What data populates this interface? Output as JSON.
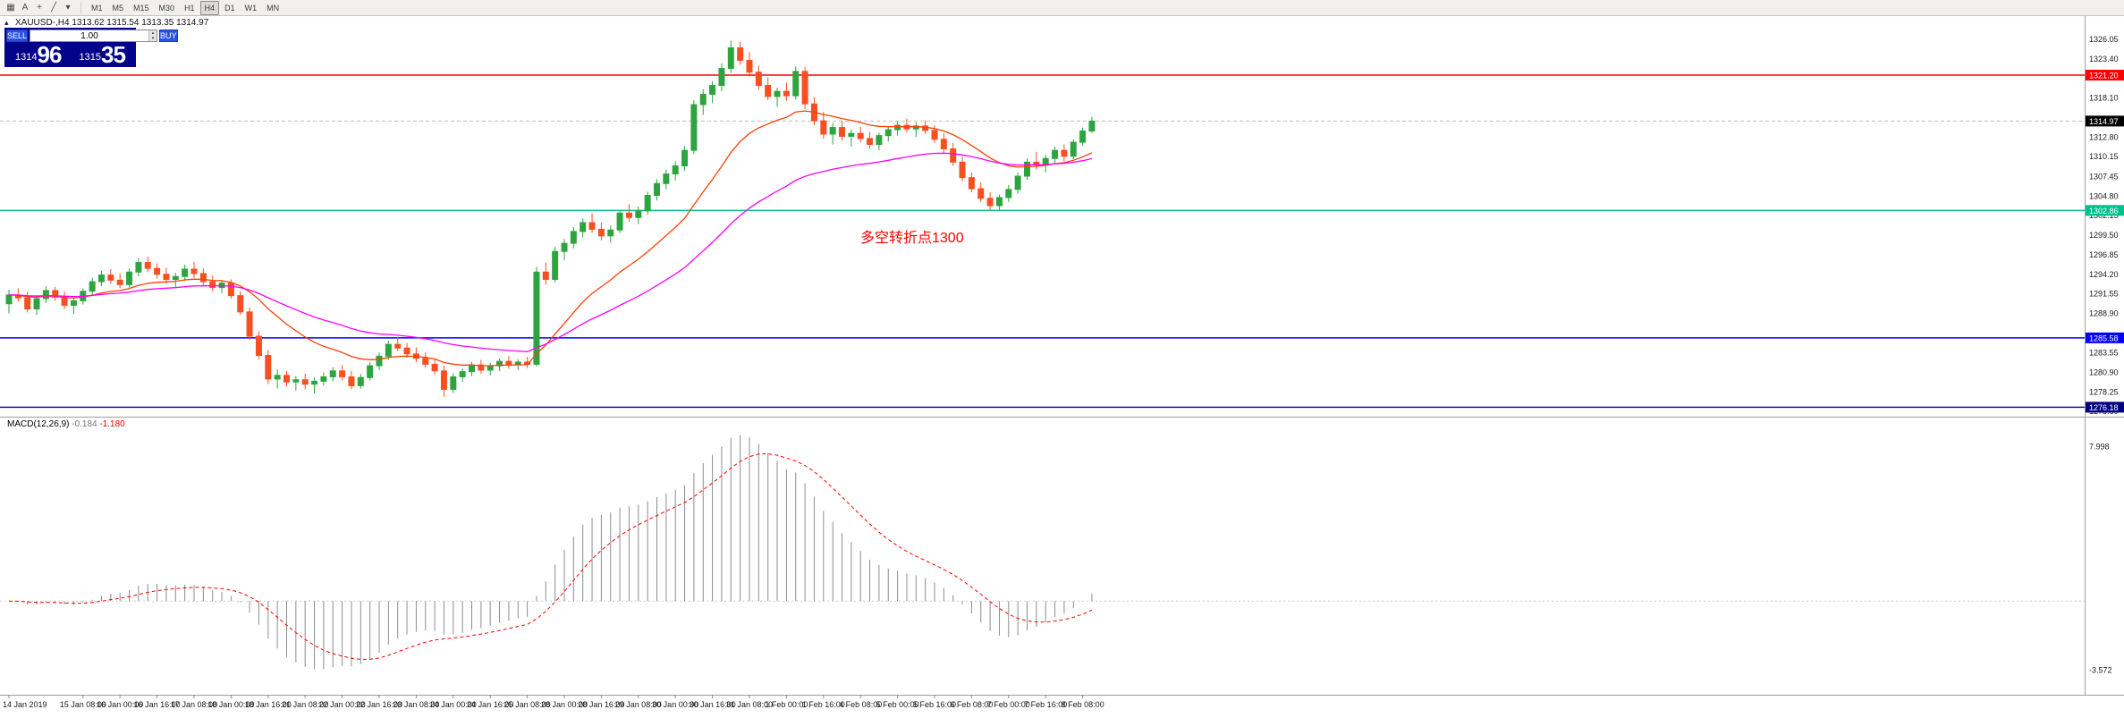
{
  "toolbar": {
    "icons": [
      {
        "name": "chart-window-icon",
        "glyph": "▦"
      },
      {
        "name": "cursor-tool-icon",
        "glyph": "A"
      },
      {
        "name": "crosshair-tool-icon",
        "glyph": "+"
      },
      {
        "name": "draw-tools-icon",
        "glyph": "╱"
      },
      {
        "name": "draw-tools-caret-icon",
        "glyph": "▾"
      }
    ],
    "timeframes": [
      {
        "label": "M1",
        "active": false
      },
      {
        "label": "M5",
        "active": false
      },
      {
        "label": "M15",
        "active": false
      },
      {
        "label": "M30",
        "active": false
      },
      {
        "label": "H1",
        "active": false
      },
      {
        "label": "H4",
        "active": true
      },
      {
        "label": "D1",
        "active": false
      },
      {
        "label": "W1",
        "active": false
      },
      {
        "label": "MN",
        "active": false
      }
    ]
  },
  "chart": {
    "title": "XAUUSD-,H4 1313.62 1315.54 1313.35 1314.97",
    "symbol": "XAUUSD-",
    "period": "H4",
    "collapse_glyph": "▴",
    "ohlc": {
      "open": "1313.62",
      "high": "1315.54",
      "low": "1313.35",
      "close": "1314.97"
    }
  },
  "trade_panel": {
    "sell_label": "SELL",
    "buy_label": "BUY",
    "volume": "1.00",
    "spin_up": "▴",
    "spin_down": "▾",
    "sell_price_main": "1314",
    "sell_price_big": "96",
    "buy_price_main": "1315",
    "buy_price_big": "35"
  },
  "annotation": {
    "text": "多空转折点1300",
    "color": "#ff0000"
  },
  "chart_data": {
    "type": "candlestick",
    "symbol": "XAUUSD-",
    "timeframe": "H4",
    "colors": {
      "bull": "#2EA440",
      "bear": "#F84F21",
      "background": "#ffffff",
      "axis_text": "#1a1a1a"
    },
    "y_axis": {
      "visible_range": [
        1275.3,
        1329.2
      ],
      "ticks": [
        1326.05,
        1323.4,
        1318.1,
        1312.8,
        1310.15,
        1307.45,
        1304.8,
        1302.15,
        1299.5,
        1296.85,
        1294.2,
        1291.55,
        1288.9,
        1283.55,
        1280.9,
        1278.25,
        1275.6
      ]
    },
    "x_axis": {
      "labels": [
        {
          "text": "14 Jan 2019",
          "bar": 0
        },
        {
          "text": "15 Jan 08:00",
          "bar": 8
        },
        {
          "text": "16 Jan 00:00",
          "bar": 12
        },
        {
          "text": "16 Jan 16:00",
          "bar": 16
        },
        {
          "text": "17 Jan 08:00",
          "bar": 20
        },
        {
          "text": "18 Jan 00:00",
          "bar": 24
        },
        {
          "text": "18 Jan 16:00",
          "bar": 28
        },
        {
          "text": "21 Jan 08:00",
          "bar": 32
        },
        {
          "text": "22 Jan 00:00",
          "bar": 36
        },
        {
          "text": "22 Jan 16:00",
          "bar": 40
        },
        {
          "text": "23 Jan 08:00",
          "bar": 44
        },
        {
          "text": "24 Jan 00:00",
          "bar": 48
        },
        {
          "text": "24 Jan 16:00",
          "bar": 52
        },
        {
          "text": "25 Jan 08:00",
          "bar": 56
        },
        {
          "text": "28 Jan 00:00",
          "bar": 60
        },
        {
          "text": "28 Jan 16:00",
          "bar": 64
        },
        {
          "text": "29 Jan 08:00",
          "bar": 68
        },
        {
          "text": "30 Jan 00:00",
          "bar": 72
        },
        {
          "text": "30 Jan 16:00",
          "bar": 76
        },
        {
          "text": "31 Jan 08:00",
          "bar": 80
        },
        {
          "text": "1 Feb 00:00",
          "bar": 84
        },
        {
          "text": "1 Feb 16:00",
          "bar": 88
        },
        {
          "text": "4 Feb 08:00",
          "bar": 92
        },
        {
          "text": "5 Feb 00:00",
          "bar": 96
        },
        {
          "text": "5 Feb 16:00",
          "bar": 100
        },
        {
          "text": "6 Feb 08:00",
          "bar": 104
        },
        {
          "text": "7 Feb 00:00",
          "bar": 108
        },
        {
          "text": "7 Feb 16:00",
          "bar": 112
        },
        {
          "text": "8 Feb 08:00",
          "bar": 116
        }
      ]
    },
    "horizontal_lines": [
      {
        "price": 1321.2,
        "label": "1321.20",
        "color": "#ff0000"
      },
      {
        "price": 1302.86,
        "label": "1302.86",
        "color": "#00bf8c"
      },
      {
        "price": 1285.58,
        "label": "1285.58",
        "color": "#0000ff"
      },
      {
        "price": 1276.18,
        "label": "1276.18",
        "color": "#000080"
      }
    ],
    "current_price": {
      "value": 1314.97,
      "label": "1314.97",
      "badge_color": "#000000"
    },
    "moving_averages": [
      {
        "name": "fast-ma",
        "period": 16,
        "method": "ema",
        "color": "#ff4000"
      },
      {
        "name": "slow-ma",
        "period": 38,
        "method": "ema",
        "color": "#ff00ff"
      }
    ],
    "macd": {
      "label": "MACD(12,26,9)",
      "main_value": "-0.184",
      "signal_value": "-1.180",
      "fast": 12,
      "slow": 26,
      "signal_period": 9,
      "scale_labels": [
        "7.998",
        "-3.572"
      ],
      "scale_values": [
        7.998,
        -3.572
      ],
      "histogram_color": "#8c8c8c",
      "signal_color": "#ff0000"
    },
    "candles": [
      [
        1290.2,
        1292.1,
        1288.9,
        1291.4
      ],
      [
        1291.4,
        1292.3,
        1290.5,
        1291.0
      ],
      [
        1291.0,
        1291.8,
        1289.0,
        1289.5
      ],
      [
        1289.5,
        1291.3,
        1288.7,
        1290.9
      ],
      [
        1290.9,
        1292.6,
        1290.3,
        1292.0
      ],
      [
        1292.0,
        1292.5,
        1290.6,
        1291.1
      ],
      [
        1291.1,
        1291.9,
        1289.5,
        1290.0
      ],
      [
        1290.0,
        1291.0,
        1288.8,
        1290.6
      ],
      [
        1290.6,
        1292.3,
        1290.1,
        1291.9
      ],
      [
        1291.9,
        1293.7,
        1291.4,
        1293.2
      ],
      [
        1293.2,
        1294.7,
        1292.6,
        1294.1
      ],
      [
        1294.1,
        1294.9,
        1292.9,
        1293.4
      ],
      [
        1293.4,
        1294.3,
        1292.3,
        1292.8
      ],
      [
        1292.8,
        1295.0,
        1292.4,
        1294.5
      ],
      [
        1294.5,
        1296.4,
        1293.9,
        1295.8
      ],
      [
        1295.8,
        1296.6,
        1294.5,
        1295.0
      ],
      [
        1295.0,
        1295.7,
        1293.6,
        1294.2
      ],
      [
        1294.2,
        1295.1,
        1292.9,
        1293.5
      ],
      [
        1293.5,
        1294.4,
        1292.5,
        1293.9
      ],
      [
        1293.9,
        1295.5,
        1293.3,
        1294.9
      ],
      [
        1294.9,
        1295.9,
        1293.7,
        1294.3
      ],
      [
        1294.3,
        1295.0,
        1292.7,
        1293.2
      ],
      [
        1293.2,
        1294.0,
        1291.9,
        1292.4
      ],
      [
        1292.4,
        1293.4,
        1291.6,
        1293.0
      ],
      [
        1293.0,
        1293.5,
        1290.9,
        1291.3
      ],
      [
        1291.3,
        1291.9,
        1288.7,
        1289.1
      ],
      [
        1289.1,
        1289.7,
        1285.3,
        1285.8
      ],
      [
        1285.8,
        1286.5,
        1282.7,
        1283.2
      ],
      [
        1283.2,
        1283.9,
        1279.3,
        1280.0
      ],
      [
        1280.0,
        1281.3,
        1278.7,
        1280.5
      ],
      [
        1280.5,
        1281.1,
        1279.0,
        1279.6
      ],
      [
        1279.6,
        1280.4,
        1278.4,
        1279.9
      ],
      [
        1279.9,
        1280.7,
        1278.6,
        1279.3
      ],
      [
        1279.3,
        1280.2,
        1278.0,
        1279.7
      ],
      [
        1279.7,
        1280.9,
        1279.1,
        1280.3
      ],
      [
        1280.3,
        1281.6,
        1279.7,
        1281.1
      ],
      [
        1281.1,
        1281.9,
        1279.8,
        1280.3
      ],
      [
        1280.3,
        1281.1,
        1278.6,
        1279.1
      ],
      [
        1279.1,
        1280.7,
        1278.7,
        1280.2
      ],
      [
        1280.2,
        1282.3,
        1279.8,
        1281.8
      ],
      [
        1281.8,
        1283.6,
        1281.2,
        1283.1
      ],
      [
        1283.1,
        1285.2,
        1282.6,
        1284.7
      ],
      [
        1284.7,
        1285.7,
        1283.8,
        1284.2
      ],
      [
        1284.2,
        1284.9,
        1282.9,
        1283.4
      ],
      [
        1283.4,
        1284.3,
        1282.3,
        1282.8
      ],
      [
        1282.8,
        1283.6,
        1281.5,
        1282.0
      ],
      [
        1282.0,
        1282.8,
        1280.6,
        1281.1
      ],
      [
        1281.1,
        1281.8,
        1277.6,
        1278.6
      ],
      [
        1278.6,
        1280.8,
        1278.1,
        1280.3
      ],
      [
        1280.3,
        1281.5,
        1279.6,
        1281.0
      ],
      [
        1281.0,
        1282.3,
        1280.4,
        1281.9
      ],
      [
        1281.9,
        1282.6,
        1280.7,
        1281.2
      ],
      [
        1281.2,
        1282.2,
        1280.5,
        1281.8
      ],
      [
        1281.8,
        1282.8,
        1281.1,
        1282.4
      ],
      [
        1282.4,
        1283.1,
        1281.4,
        1281.9
      ],
      [
        1281.9,
        1282.7,
        1281.2,
        1282.3
      ],
      [
        1282.3,
        1283.0,
        1281.5,
        1282.0
      ],
      [
        1282.0,
        1295.2,
        1281.7,
        1294.5
      ],
      [
        1294.5,
        1295.8,
        1292.8,
        1293.5
      ],
      [
        1293.5,
        1297.9,
        1293.1,
        1297.3
      ],
      [
        1297.3,
        1299.0,
        1296.1,
        1298.4
      ],
      [
        1298.4,
        1300.6,
        1297.7,
        1300.0
      ],
      [
        1300.0,
        1301.8,
        1299.2,
        1301.2
      ],
      [
        1301.2,
        1302.5,
        1299.8,
        1300.3
      ],
      [
        1300.3,
        1301.2,
        1298.8,
        1299.4
      ],
      [
        1299.4,
        1300.8,
        1298.5,
        1300.2
      ],
      [
        1300.2,
        1302.9,
        1299.8,
        1302.5
      ],
      [
        1302.5,
        1303.7,
        1301.3,
        1301.9
      ],
      [
        1301.9,
        1303.4,
        1301.0,
        1302.8
      ],
      [
        1302.8,
        1305.4,
        1302.3,
        1304.9
      ],
      [
        1304.9,
        1307.1,
        1304.2,
        1306.5
      ],
      [
        1306.5,
        1308.4,
        1305.7,
        1307.8
      ],
      [
        1307.8,
        1309.5,
        1306.9,
        1308.9
      ],
      [
        1308.9,
        1311.6,
        1308.2,
        1311.0
      ],
      [
        1311.0,
        1317.8,
        1310.5,
        1317.2
      ],
      [
        1317.2,
        1319.3,
        1315.8,
        1318.6
      ],
      [
        1318.6,
        1320.4,
        1317.4,
        1319.8
      ],
      [
        1319.8,
        1322.8,
        1319.0,
        1322.1
      ],
      [
        1322.1,
        1325.9,
        1321.5,
        1324.9
      ],
      [
        1324.9,
        1325.7,
        1322.6,
        1323.2
      ],
      [
        1323.2,
        1324.3,
        1321.0,
        1321.6
      ],
      [
        1321.6,
        1322.5,
        1319.2,
        1319.8
      ],
      [
        1319.8,
        1320.9,
        1317.8,
        1318.3
      ],
      [
        1318.3,
        1319.5,
        1316.9,
        1319.0
      ],
      [
        1319.0,
        1320.2,
        1317.7,
        1318.4
      ],
      [
        1318.4,
        1322.4,
        1317.9,
        1321.7
      ],
      [
        1321.7,
        1322.3,
        1316.6,
        1317.3
      ],
      [
        1317.3,
        1318.2,
        1314.4,
        1315.0
      ],
      [
        1315.0,
        1316.2,
        1312.6,
        1313.2
      ],
      [
        1313.2,
        1314.7,
        1311.8,
        1314.1
      ],
      [
        1314.1,
        1315.0,
        1312.3,
        1312.9
      ],
      [
        1312.9,
        1313.8,
        1311.5,
        1313.3
      ],
      [
        1313.3,
        1314.2,
        1312.1,
        1312.6
      ],
      [
        1312.6,
        1313.5,
        1311.2,
        1311.8
      ],
      [
        1311.8,
        1313.4,
        1311.0,
        1313.0
      ],
      [
        1313.0,
        1314.3,
        1312.2,
        1313.8
      ],
      [
        1313.8,
        1314.9,
        1313.0,
        1314.4
      ],
      [
        1314.4,
        1315.3,
        1313.4,
        1313.9
      ],
      [
        1313.9,
        1314.8,
        1312.8,
        1314.3
      ],
      [
        1314.3,
        1315.1,
        1313.2,
        1313.7
      ],
      [
        1313.7,
        1314.4,
        1312.0,
        1312.5
      ],
      [
        1312.5,
        1313.3,
        1310.7,
        1311.2
      ],
      [
        1311.2,
        1312.0,
        1308.9,
        1309.4
      ],
      [
        1309.4,
        1310.2,
        1306.8,
        1307.3
      ],
      [
        1307.3,
        1308.0,
        1305.3,
        1305.8
      ],
      [
        1305.8,
        1306.6,
        1304.0,
        1304.5
      ],
      [
        1304.5,
        1305.3,
        1302.9,
        1303.5
      ],
      [
        1303.5,
        1305.0,
        1302.9,
        1304.6
      ],
      [
        1304.6,
        1306.3,
        1304.0,
        1305.7
      ],
      [
        1305.7,
        1308.0,
        1305.1,
        1307.5
      ],
      [
        1307.5,
        1309.9,
        1307.0,
        1309.4
      ],
      [
        1309.4,
        1310.8,
        1308.4,
        1309.0
      ],
      [
        1309.0,
        1310.4,
        1308.0,
        1309.9
      ],
      [
        1309.9,
        1311.5,
        1309.2,
        1311.0
      ],
      [
        1311.0,
        1311.8,
        1309.5,
        1310.2
      ],
      [
        1310.2,
        1312.5,
        1309.8,
        1312.1
      ],
      [
        1312.1,
        1314.1,
        1311.6,
        1313.62
      ],
      [
        1313.62,
        1315.54,
        1313.35,
        1314.97
      ]
    ]
  }
}
